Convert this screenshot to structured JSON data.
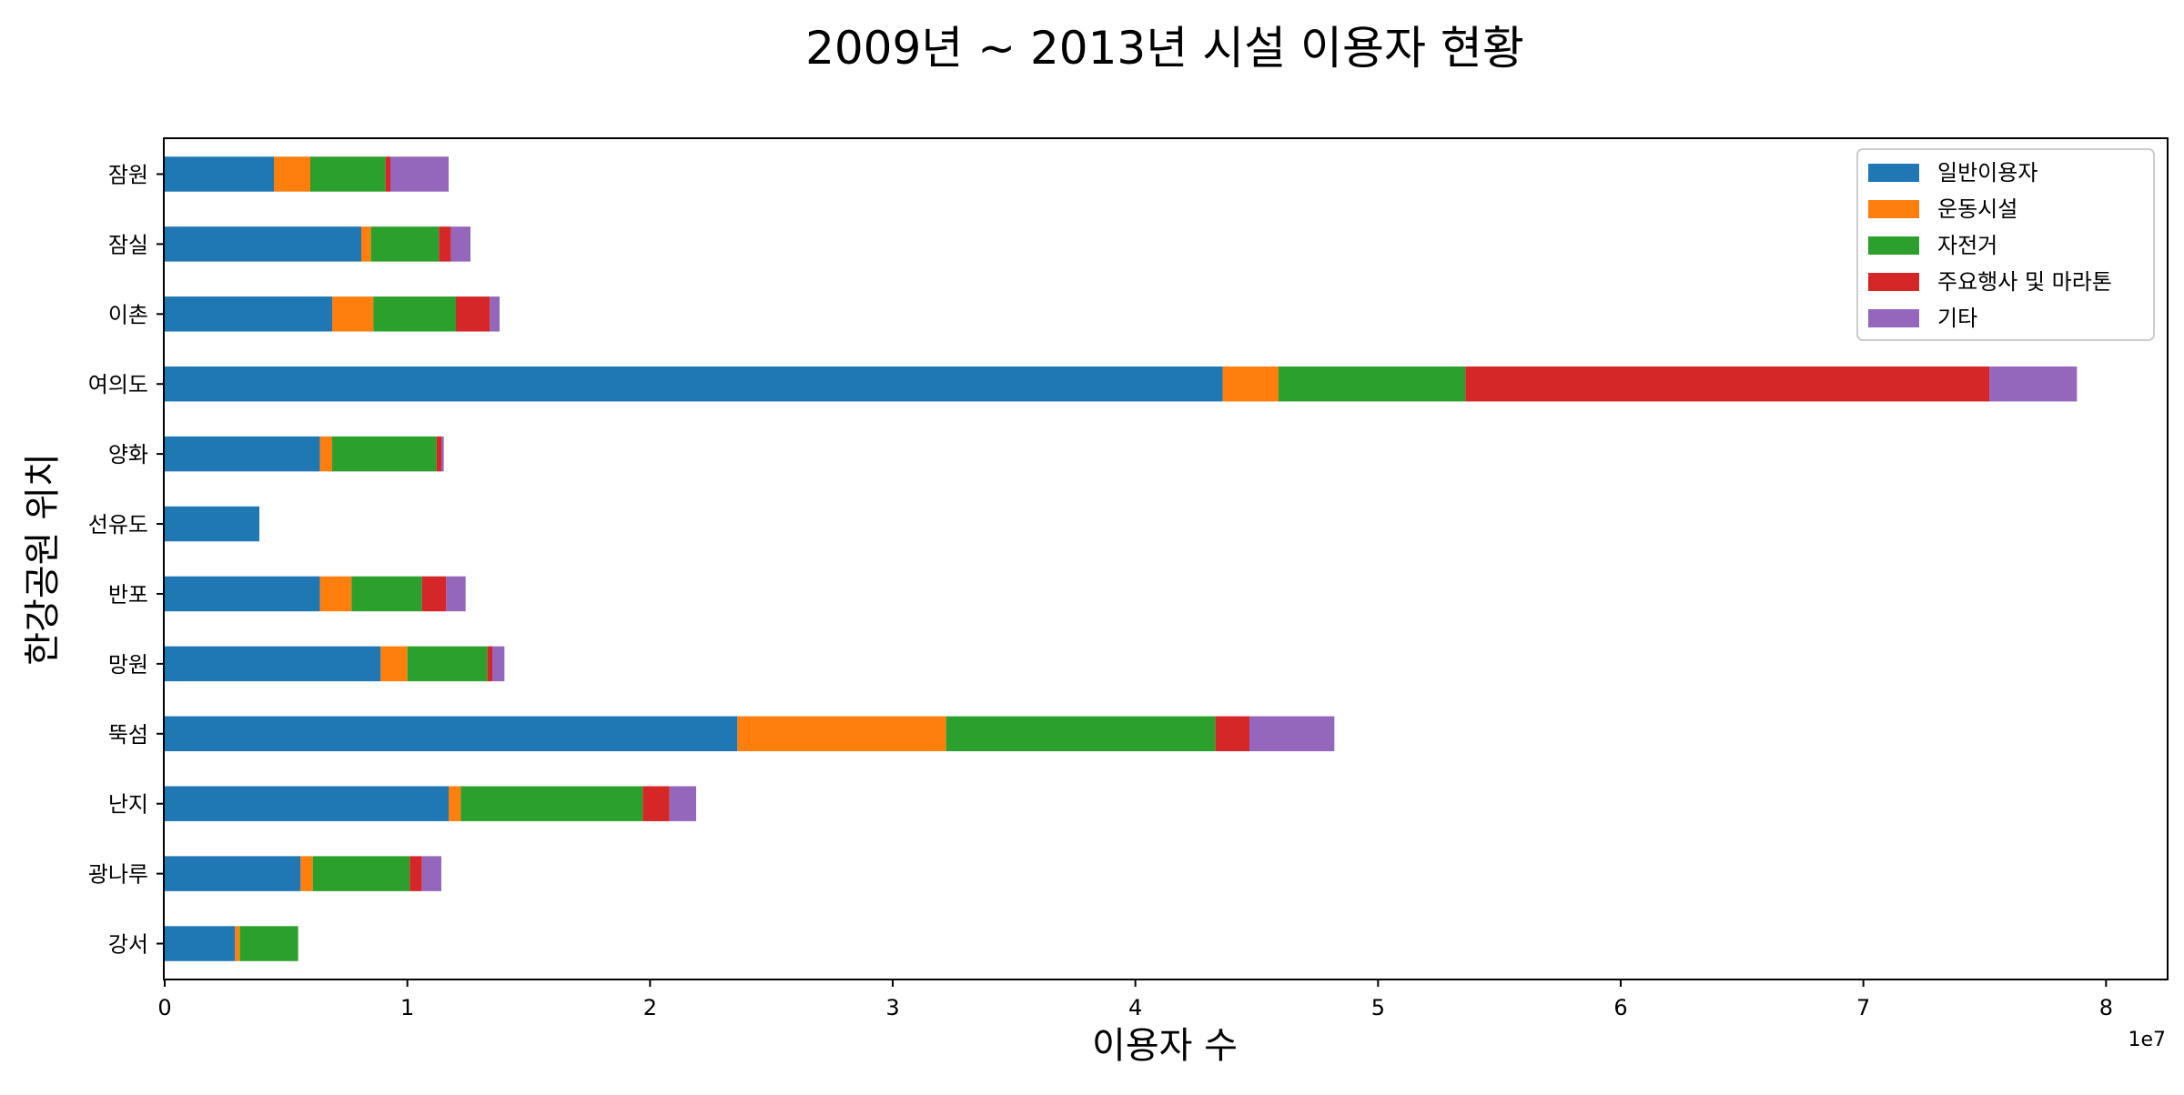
{
  "chart_data": {
    "type": "bar",
    "orientation": "horizontal",
    "stacked": true,
    "title": "2009년 ~ 2013년 시설 이용자 현황",
    "xlabel": "이용자 수",
    "ylabel": "한강공원 위치",
    "x_scale_note": "1e7",
    "xlim": [
      0,
      82500000
    ],
    "xticks": [
      0,
      10000000,
      20000000,
      30000000,
      40000000,
      50000000,
      60000000,
      70000000,
      80000000
    ],
    "xtick_labels": [
      "0",
      "1",
      "2",
      "3",
      "4",
      "5",
      "6",
      "7",
      "8"
    ],
    "categories": [
      "강서",
      "광나루",
      "난지",
      "뚝섬",
      "망원",
      "반포",
      "선유도",
      "양화",
      "여의도",
      "이촌",
      "잠실",
      "잠원"
    ],
    "series": [
      {
        "name": "일반이용자",
        "color": "#1f77b4",
        "values": [
          2900000,
          5600000,
          11700000,
          23600000,
          8900000,
          6400000,
          3900000,
          6400000,
          43600000,
          6900000,
          8100000,
          4500000
        ]
      },
      {
        "name": "운동시설",
        "color": "#ff7f0e",
        "values": [
          200000,
          500000,
          500000,
          8600000,
          1100000,
          1300000,
          0,
          500000,
          2300000,
          1700000,
          400000,
          1500000
        ]
      },
      {
        "name": "자전거",
        "color": "#2ca02c",
        "values": [
          2400000,
          4000000,
          7500000,
          11100000,
          3300000,
          2900000,
          0,
          4300000,
          7700000,
          3400000,
          2800000,
          3100000
        ]
      },
      {
        "name": "주요행사 및 마라톤",
        "color": "#d62728",
        "values": [
          0,
          500000,
          1100000,
          1400000,
          200000,
          1000000,
          0,
          200000,
          21600000,
          1400000,
          500000,
          200000
        ]
      },
      {
        "name": "기타",
        "color": "#9467bd",
        "values": [
          0,
          800000,
          1100000,
          3500000,
          500000,
          800000,
          0,
          100000,
          3600000,
          400000,
          800000,
          2400000
        ]
      }
    ],
    "legend_position": "upper right",
    "grid": false
  }
}
